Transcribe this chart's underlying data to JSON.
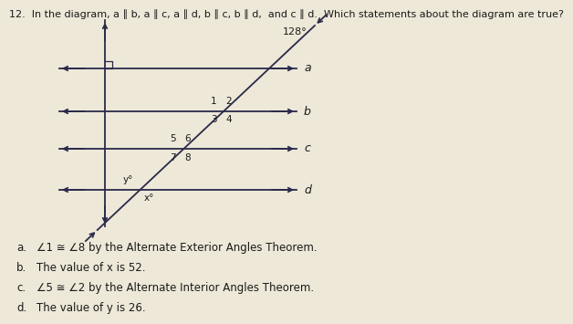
{
  "title": "12.  In the diagram, a ∥ b, a ∥ c, a ∥ d, b ∥ c, b ∥ d,  and c ∥ d.  Which statements about the diagram are true?",
  "angle_128": "128°",
  "line_labels": [
    "a",
    "b",
    "c",
    "d"
  ],
  "options": [
    [
      "a.",
      "∠1 ≅ ∠8 by the Alternate Exterior Angles Theorem."
    ],
    [
      "b.",
      "The value of x is 52."
    ],
    [
      "c.",
      "∠5 ≅ ∠2 by the Alternate Interior Angles Theorem."
    ],
    [
      "d.",
      "The value of y is 26."
    ]
  ],
  "bg_color": "#ede8d8",
  "text_color": "#1a1a1a",
  "line_color": "#2a2a4a"
}
